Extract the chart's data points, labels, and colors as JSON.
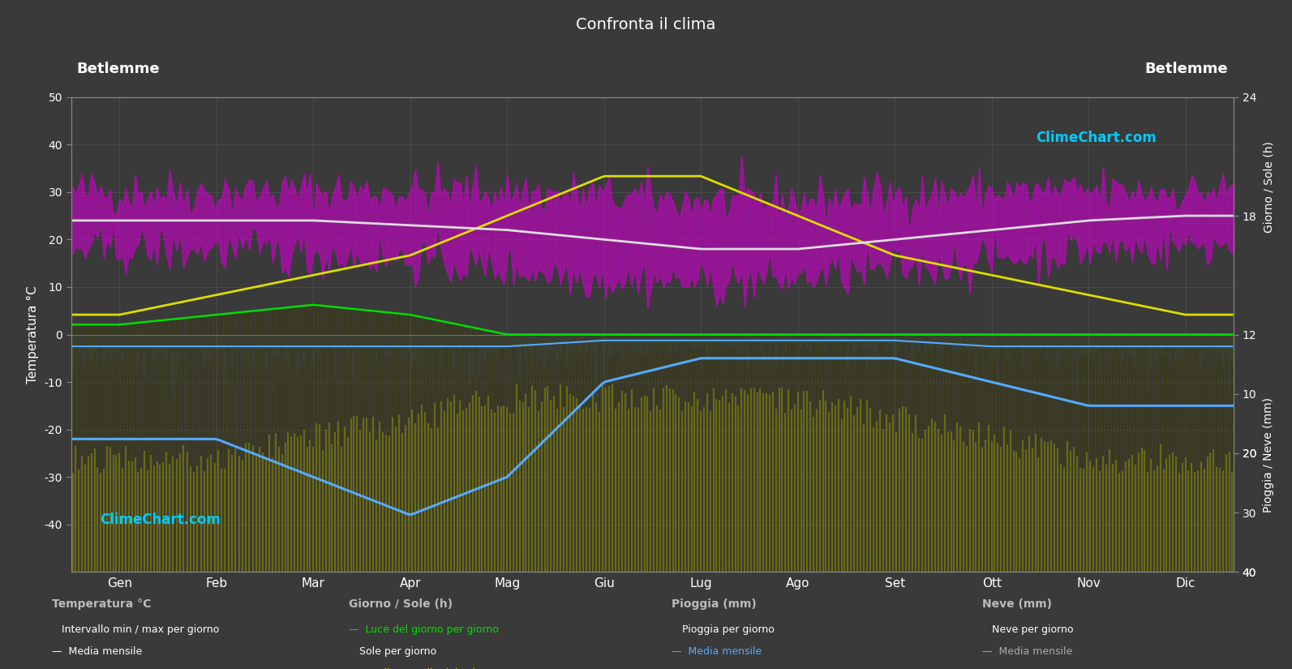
{
  "title": "Confronta il clima",
  "location_left": "Betlemme",
  "location_right": "Betlemme",
  "background_color": "#3a3a3a",
  "plot_bg_color": "#3a3a3a",
  "grid_color": "#555555",
  "text_color": "#ffffff",
  "months": [
    "Gen",
    "Feb",
    "Mar",
    "Apr",
    "Mag",
    "Giu",
    "Lug",
    "Ago",
    "Set",
    "Ott",
    "Nov",
    "Dic"
  ],
  "temp_ylim": [
    -50,
    50
  ],
  "sun_ylim": [
    0,
    24
  ],
  "rain_ylim_inverted": [
    0,
    40
  ],
  "temp_avg": [
    24,
    24,
    24,
    23,
    22,
    20,
    18,
    18,
    20,
    22,
    24,
    25
  ],
  "temp_max_avg": [
    30,
    30,
    30,
    30,
    30,
    29,
    28,
    28,
    29,
    30,
    30,
    30
  ],
  "temp_min_avg": [
    18,
    18,
    17,
    16,
    14,
    12,
    11,
    12,
    14,
    16,
    18,
    19
  ],
  "snow_monthly_line": [
    -22,
    -22,
    -30,
    -38,
    -30,
    -10,
    -5,
    -5,
    -5,
    -10,
    -15,
    -15
  ],
  "snow_avg_vals": [
    22,
    22,
    30,
    38,
    30,
    10,
    5,
    5,
    5,
    10,
    15,
    15
  ],
  "sun_daylight_avg": [
    12.5,
    13,
    13.5,
    13,
    12,
    12,
    12,
    12,
    12,
    12,
    12,
    12
  ],
  "sun_avg": [
    5,
    5,
    6,
    7,
    8,
    8,
    8,
    8,
    7,
    6,
    5,
    5
  ],
  "sun_monthly_avg": [
    13,
    14,
    15,
    16,
    18,
    20,
    20,
    18,
    16,
    15,
    14,
    13
  ],
  "rain_avg": [
    2,
    2,
    2,
    2,
    2,
    1,
    1,
    1,
    1,
    2,
    2,
    2
  ],
  "ylabel_left": "Temperatura °C",
  "ylabel_right_top": "Giorno / Sole (h)",
  "ylabel_right_bottom": "Pioggia / Neve (mm)",
  "legend_col1_title": "Temperatura °C",
  "legend_col2_title": "Giorno / Sole (h)",
  "legend_col3_title": "Pioggia (mm)",
  "legend_col4_title": "Neve (mm)",
  "legend_col1_row1": "Intervallo min / max per giorno",
  "legend_col1_row2": "Media mensile",
  "legend_col2_row1": "Luce del giorno per giorno",
  "legend_col2_row2": "Sole per giorno",
  "legend_col2_row3": "Media mensile del sole",
  "legend_col3_row1": "Pioggia per giorno",
  "legend_col3_row2": "Media mensile",
  "legend_col4_row1": "Neve per giorno",
  "legend_col4_row2": "Media mensile",
  "color_temp_band": "#cc00cc",
  "color_temp_line": "#dddddd",
  "color_daylight": "#00dd00",
  "color_sun_bar": "#999900",
  "color_sun_line": "#dddd00",
  "color_rain_bar": "#3377bb",
  "color_rain_line": "#55aaff",
  "color_snow_bar": "#888888",
  "color_snow_line": "#55aaff",
  "color_climechart": "#00ccff"
}
